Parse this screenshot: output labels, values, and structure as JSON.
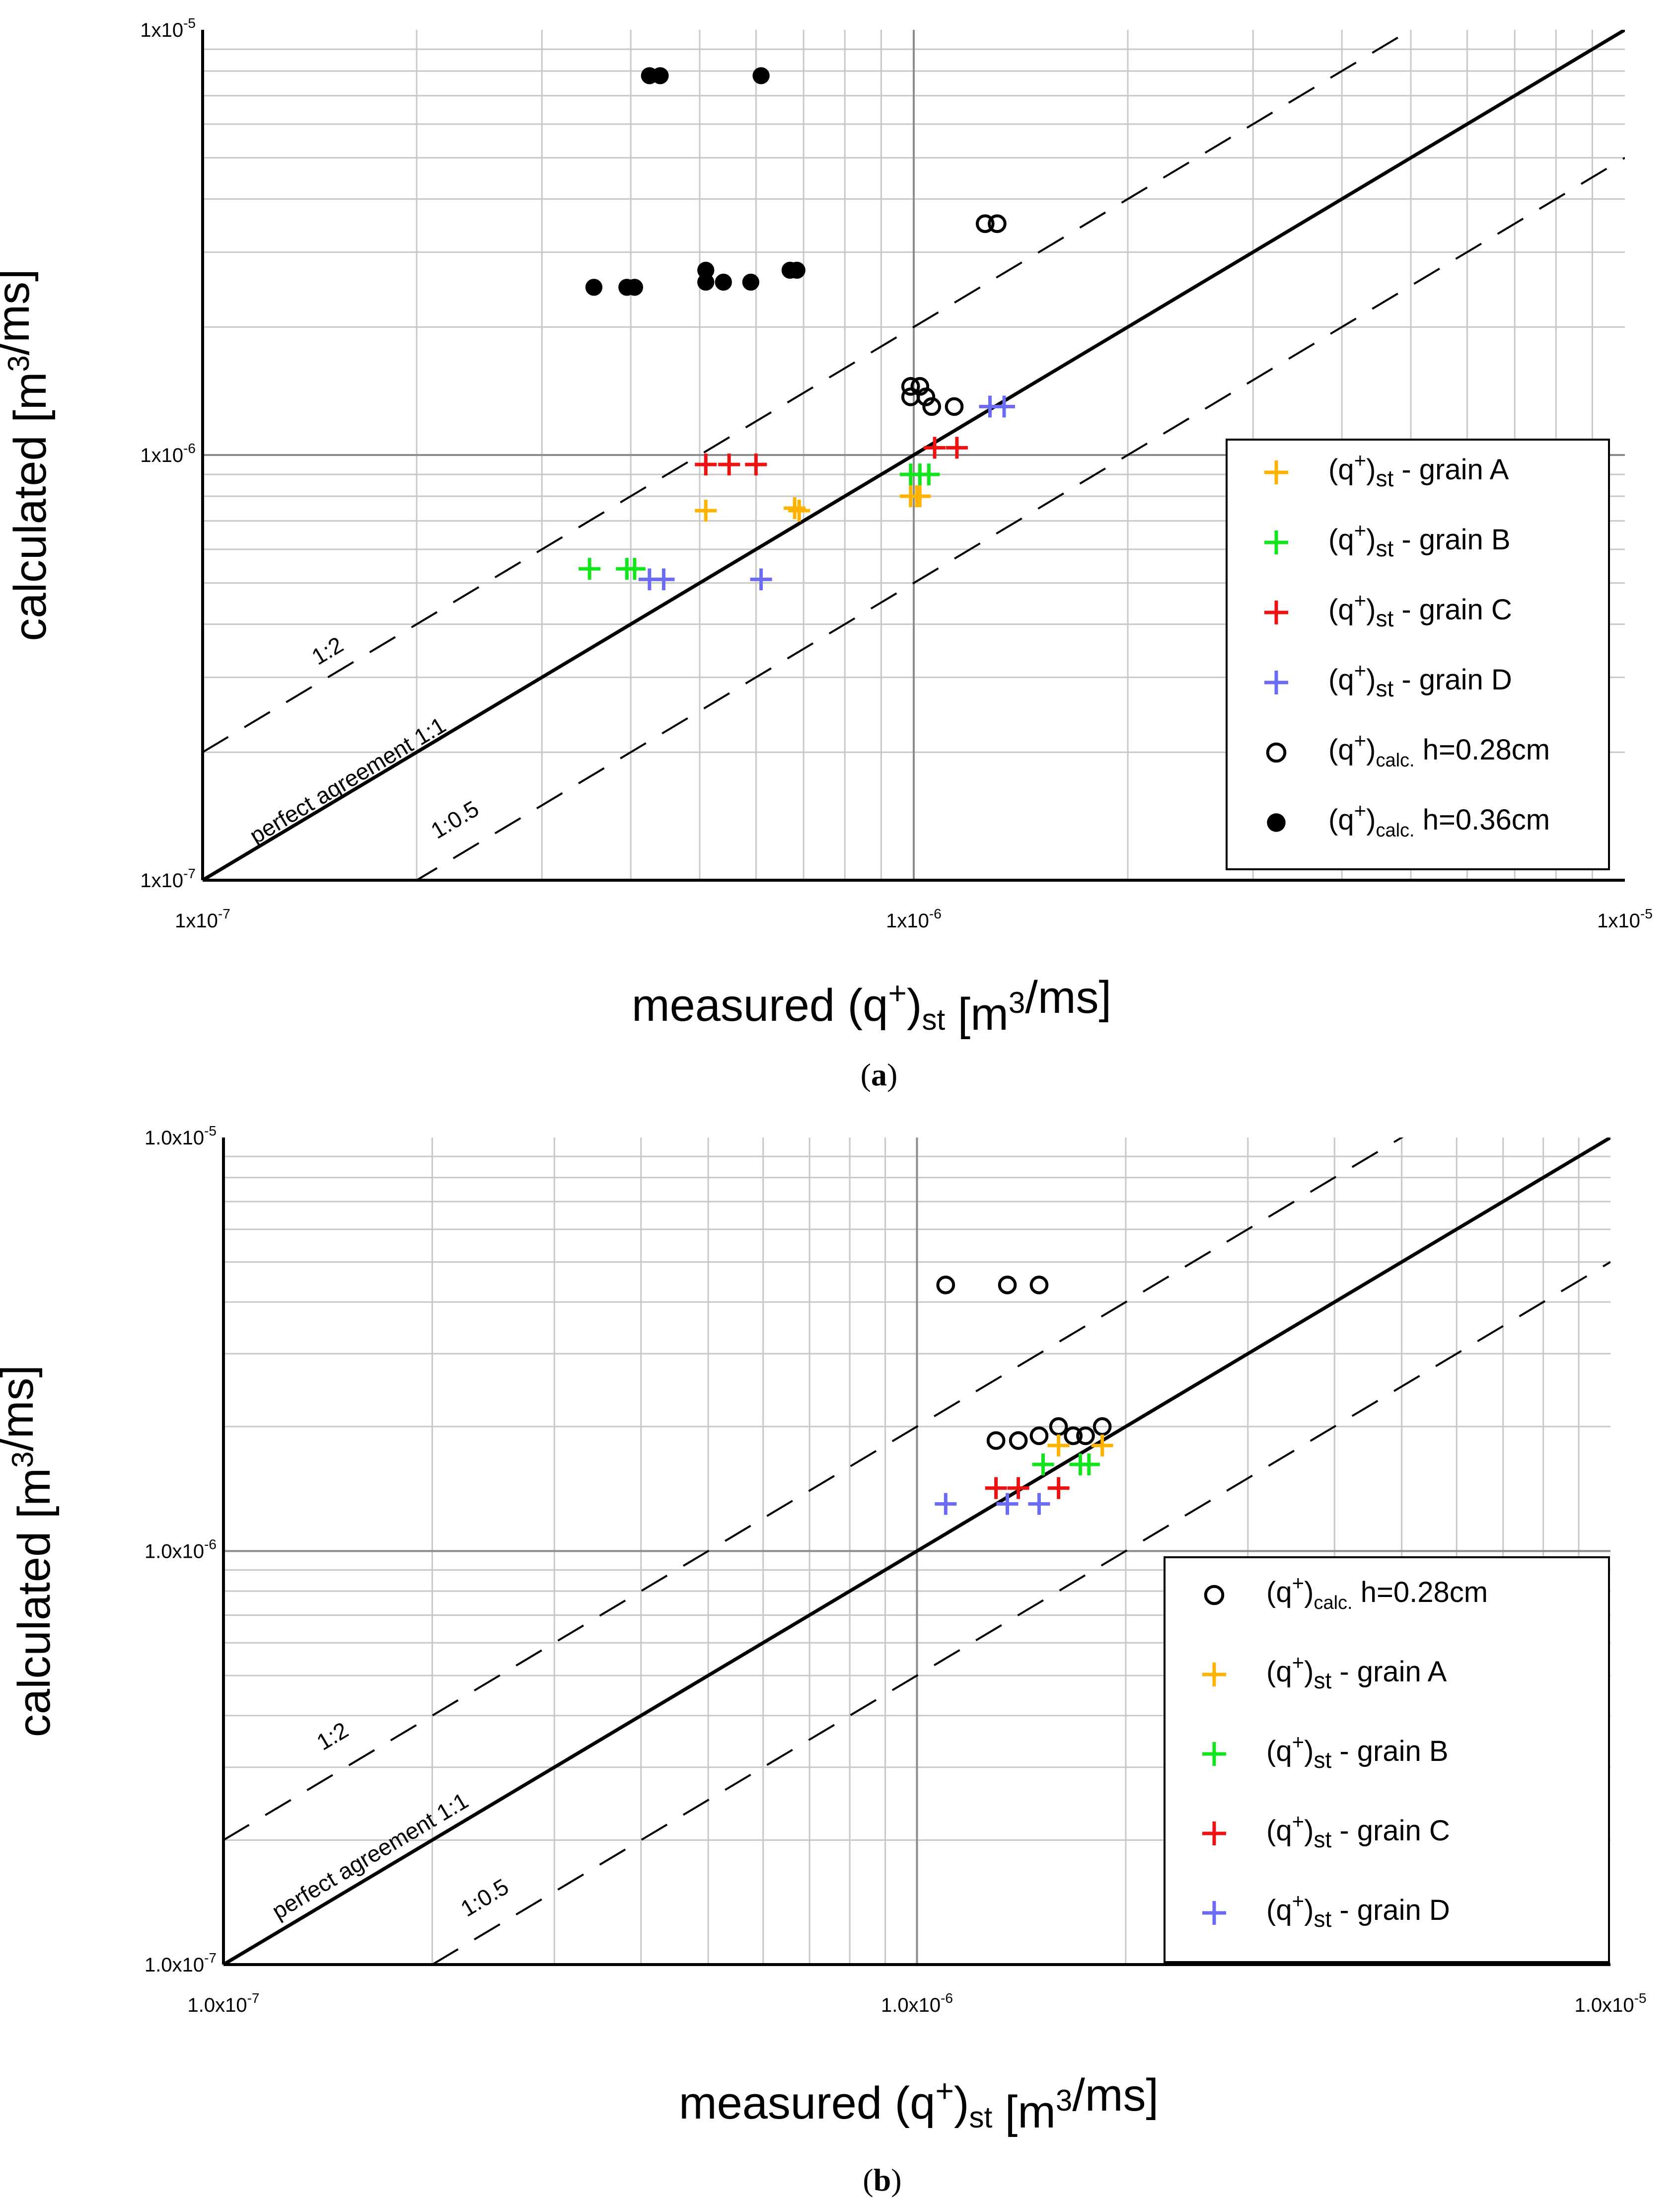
{
  "chart_data": [
    {
      "type": "scatter",
      "panel": "(a)",
      "panel_letter": "a",
      "xscale": "log",
      "yscale": "log",
      "xlim": [
        1e-07,
        1e-05
      ],
      "ylim": [
        1e-07,
        1e-05
      ],
      "xticks": [
        "1x10-7",
        "1x10-6",
        "1x10-5"
      ],
      "yticks": [
        "1x10-7",
        "1x10-6",
        "1x10-5"
      ],
      "grid": true,
      "xlabel": "measured (q+)st [m3/ms]",
      "ylabel": "calculated [m3/ms]",
      "reference_lines": [
        {
          "label": "perfect agreement 1:1",
          "ratio": 1,
          "style": "solid"
        },
        {
          "label": "1:2",
          "ratio": 2,
          "style": "dashed"
        },
        {
          "label": "1:0.5",
          "ratio": 0.5,
          "style": "dashed"
        }
      ],
      "legend_position": "bottom-right",
      "series": [
        {
          "name": "(q+)st - grain A",
          "base": "(q",
          "sub": "st",
          "suffix": " - grain A",
          "marker": "plus",
          "color": "#ffb300",
          "points": [
            [
              5.1e-07,
              7.4e-07
            ],
            [
              6.8e-07,
              7.5e-07
            ],
            [
              6.9e-07,
              7.4e-07
            ],
            [
              9.9e-07,
              8e-07
            ],
            [
              1.01e-06,
              8e-07
            ],
            [
              1.02e-06,
              8e-07
            ]
          ]
        },
        {
          "name": "(q+)st - grain B",
          "base": "(q",
          "sub": "st",
          "suffix": " - grain B",
          "marker": "plus",
          "color": "#11e51b",
          "points": [
            [
              3.5e-07,
              5.4e-07
            ],
            [
              3.95e-07,
              5.4e-07
            ],
            [
              4.05e-07,
              5.4e-07
            ],
            [
              9.9e-07,
              9e-07
            ],
            [
              1.02e-06,
              9e-07
            ],
            [
              1.05e-06,
              9e-07
            ]
          ]
        },
        {
          "name": "(q+)st - grain C",
          "base": "(q",
          "sub": "st",
          "suffix": " - grain C",
          "marker": "plus",
          "color": "#ee1111",
          "points": [
            [
              5.1e-07,
              9.5e-07
            ],
            [
              5.5e-07,
              9.5e-07
            ],
            [
              6e-07,
              9.5e-07
            ],
            [
              1.07e-06,
              1.04e-06
            ],
            [
              1.15e-06,
              1.04e-06
            ]
          ]
        },
        {
          "name": "(q+)st - grain D",
          "base": "(q",
          "sub": "st",
          "suffix": " - grain D",
          "marker": "plus",
          "color": "#6b6bf5",
          "points": [
            [
              4.25e-07,
              5.1e-07
            ],
            [
              4.45e-07,
              5.1e-07
            ],
            [
              6.1e-07,
              5.1e-07
            ],
            [
              1.28e-06,
              1.3e-06
            ],
            [
              1.34e-06,
              1.3e-06
            ]
          ]
        },
        {
          "name": "(q+)calc. h=0.28cm",
          "base": "(q",
          "sub": "calc.",
          "suffix": " h=0.28cm",
          "marker": "open-circle",
          "color": "#000000",
          "points": [
            [
              1.26e-06,
              3.5e-06
            ],
            [
              1.31e-06,
              3.5e-06
            ],
            [
              9.9e-07,
              1.45e-06
            ],
            [
              1.02e-06,
              1.45e-06
            ],
            [
              9.9e-07,
              1.37e-06
            ],
            [
              1.04e-06,
              1.37e-06
            ],
            [
              1.06e-06,
              1.3e-06
            ],
            [
              1.14e-06,
              1.3e-06
            ]
          ]
        },
        {
          "name": "(q+)calc. h=0.36cm",
          "base": "(q",
          "sub": "calc.",
          "suffix": " h=0.36cm",
          "marker": "filled-circle",
          "color": "#000000",
          "points": [
            [
              4.25e-07,
              7.8e-06
            ],
            [
              4.4e-07,
              7.8e-06
            ],
            [
              6.1e-07,
              7.8e-06
            ],
            [
              3.55e-07,
              2.48e-06
            ],
            [
              3.95e-07,
              2.48e-06
            ],
            [
              4.05e-07,
              2.48e-06
            ],
            [
              5.1e-07,
              2.55e-06
            ],
            [
              5.1e-07,
              2.72e-06
            ],
            [
              5.4e-07,
              2.55e-06
            ],
            [
              5.9e-07,
              2.55e-06
            ],
            [
              6.7e-07,
              2.72e-06
            ],
            [
              6.85e-07,
              2.72e-06
            ]
          ]
        }
      ],
      "legend_order": [
        0,
        1,
        2,
        3,
        4,
        5
      ]
    },
    {
      "type": "scatter",
      "panel": "(b)",
      "panel_letter": "b",
      "xscale": "log",
      "yscale": "log",
      "xlim": [
        1e-07,
        1e-05
      ],
      "ylim": [
        1e-07,
        1e-05
      ],
      "xticks": [
        "1.0x10-7",
        "1.0x10-6",
        "1.0x10-5"
      ],
      "yticks": [
        "1.0x10-7",
        "1.0x10-6",
        "1.0x10-5"
      ],
      "grid": true,
      "xlabel": "measured (q+)st [m3/ms]",
      "ylabel": "calculated [m3/ms]",
      "reference_lines": [
        {
          "label": "perfect agreement 1:1",
          "ratio": 1,
          "style": "solid"
        },
        {
          "label": "1:2",
          "ratio": 2,
          "style": "dashed"
        },
        {
          "label": "1:0.5",
          "ratio": 0.5,
          "style": "dashed"
        }
      ],
      "legend_position": "bottom-right",
      "series": [
        {
          "name": "(q+)calc. h=0.28cm",
          "base": "(q",
          "sub": "calc.",
          "suffix": " h=0.28cm",
          "marker": "open-circle",
          "color": "#000000",
          "points": [
            [
              1.1e-06,
              4.4e-06
            ],
            [
              1.35e-06,
              4.4e-06
            ],
            [
              1.5e-06,
              4.4e-06
            ],
            [
              1.3e-06,
              1.85e-06
            ],
            [
              1.4e-06,
              1.85e-06
            ],
            [
              1.5e-06,
              1.9e-06
            ],
            [
              1.6e-06,
              2e-06
            ],
            [
              1.68e-06,
              1.9e-06
            ],
            [
              1.75e-06,
              1.9e-06
            ],
            [
              1.85e-06,
              2e-06
            ]
          ]
        },
        {
          "name": "(q+)st - grain A",
          "base": "(q",
          "sub": "st",
          "suffix": " - grain A",
          "marker": "plus",
          "color": "#ffb300",
          "points": [
            [
              1.6e-06,
              1.8e-06
            ],
            [
              1.85e-06,
              1.8e-06
            ]
          ]
        },
        {
          "name": "(q+)st - grain B",
          "base": "(q",
          "sub": "st",
          "suffix": " - grain B",
          "marker": "plus",
          "color": "#11e51b",
          "points": [
            [
              1.52e-06,
              1.62e-06
            ],
            [
              1.72e-06,
              1.62e-06
            ],
            [
              1.77e-06,
              1.62e-06
            ]
          ]
        },
        {
          "name": "(q+)st - grain C",
          "base": "(q",
          "sub": "st",
          "suffix": " - grain C",
          "marker": "plus",
          "color": "#ee1111",
          "points": [
            [
              1.3e-06,
              1.42e-06
            ],
            [
              1.4e-06,
              1.42e-06
            ],
            [
              1.6e-06,
              1.42e-06
            ]
          ]
        },
        {
          "name": "(q+)st - grain D",
          "base": "(q",
          "sub": "st",
          "suffix": " - grain D",
          "marker": "plus",
          "color": "#6b6bf5",
          "points": [
            [
              1.1e-06,
              1.3e-06
            ],
            [
              1.35e-06,
              1.3e-06
            ],
            [
              1.5e-06,
              1.3e-06
            ]
          ]
        }
      ],
      "legend_order": [
        0,
        1,
        2,
        3,
        4
      ]
    }
  ]
}
